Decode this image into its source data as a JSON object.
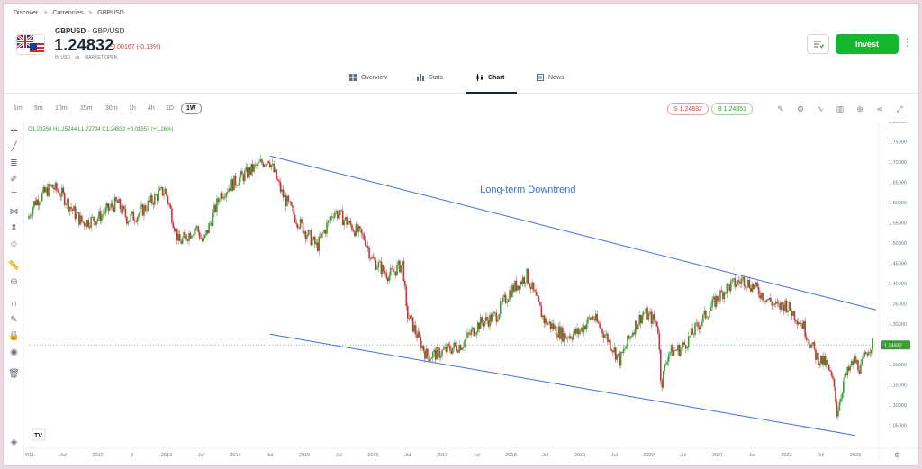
{
  "breadcrumb": {
    "discover": "Discover",
    "currencies": "Currencies",
    "current": "GBPUSD",
    "sep": ">"
  },
  "instrument": {
    "symbol": "GBPUSD",
    "sep": "·",
    "name": "GBP/USD",
    "price": "1.24832",
    "change": "-0.00167 (-0.13%)",
    "currency": "IN USD",
    "market_status": "MARKET OPEN"
  },
  "actions": {
    "invest_label": "Invest",
    "more_icon": "more-vertical-icon",
    "watch_icon": "watchlist-icon"
  },
  "tabs": [
    {
      "label": "Overview",
      "icon": "overview-icon"
    },
    {
      "label": "Stats",
      "icon": "stats-icon"
    },
    {
      "label": "Chart",
      "icon": "chart-icon"
    },
    {
      "label": "News",
      "icon": "news-icon"
    }
  ],
  "timeframes": [
    "1m",
    "5m",
    "10m",
    "15m",
    "30m",
    "1h",
    "4h",
    "1D",
    "1W"
  ],
  "active_timeframe": "1W",
  "sell_pill": "S 1.24832",
  "buy_pill": "B 1.24851",
  "ohlc_text": "O1.23258 H1.25244 L1.22734 C1.24832 +0.01557 (+1.26%)",
  "current_price_label": "1.24832",
  "annotation_text": "Long-term Downtrend",
  "colors": {
    "up": "#3a9e34",
    "down": "#c8343a",
    "trend": "#3f6fe0",
    "invest": "#13b82f"
  },
  "chart_data": {
    "type": "candlestick",
    "title": "",
    "xlabel": "",
    "ylabel": "",
    "ylim": [
      1.0,
      1.8
    ],
    "yticks": [
      1.8,
      1.75,
      1.7,
      1.65,
      1.6,
      1.55,
      1.5,
      1.45,
      1.4,
      1.35,
      1.3,
      1.25,
      1.2,
      1.15,
      1.1,
      1.05
    ],
    "ytick_labels": [
      "1.80000",
      "1.75000",
      "1.70000",
      "1.65000",
      "1.60000",
      "1.55000",
      "1.50000",
      "1.45000",
      "1.40000",
      "1.35000",
      "1.30000",
      "1.25000",
      "1.20000",
      "1.15000",
      "1.10000",
      "1.05000"
    ],
    "xticks": [
      "2011",
      "Jul",
      "2012",
      "9",
      "2013",
      "Jul",
      "2014",
      "Jul",
      "2015",
      "Jul",
      "2016",
      "Jul",
      "2017",
      "Jul",
      "2018",
      "Jul",
      "2019",
      "Jul",
      "2020",
      "Jul",
      "2021",
      "Jul",
      "2022",
      "Jul",
      "2023"
    ],
    "x_years": [
      2011.0,
      2011.5,
      2012.0,
      2012.5,
      2013.0,
      2013.5,
      2014.0,
      2014.5,
      2015.0,
      2015.5,
      2016.0,
      2016.5,
      2017.0,
      2017.5,
      2018.0,
      2018.5,
      2019.0,
      2019.5,
      2020.0,
      2020.5,
      2021.0,
      2021.5,
      2022.0,
      2022.5,
      2023.0
    ],
    "xlim": [
      2011.0,
      2023.3
    ],
    "price_path": [
      [
        2011.0,
        1.56
      ],
      [
        2011.1,
        1.6
      ],
      [
        2011.35,
        1.64
      ],
      [
        2011.5,
        1.62
      ],
      [
        2011.7,
        1.57
      ],
      [
        2011.8,
        1.55
      ],
      [
        2012.0,
        1.56
      ],
      [
        2012.3,
        1.6
      ],
      [
        2012.45,
        1.56
      ],
      [
        2012.6,
        1.57
      ],
      [
        2012.9,
        1.62
      ],
      [
        2013.0,
        1.63
      ],
      [
        2013.2,
        1.5
      ],
      [
        2013.45,
        1.54
      ],
      [
        2013.55,
        1.5
      ],
      [
        2013.8,
        1.62
      ],
      [
        2014.0,
        1.65
      ],
      [
        2014.25,
        1.68
      ],
      [
        2014.5,
        1.71
      ],
      [
        2014.7,
        1.62
      ],
      [
        2014.9,
        1.56
      ],
      [
        2015.2,
        1.49
      ],
      [
        2015.45,
        1.58
      ],
      [
        2015.65,
        1.55
      ],
      [
        2015.9,
        1.51
      ],
      [
        2016.0,
        1.46
      ],
      [
        2016.25,
        1.42
      ],
      [
        2016.45,
        1.45
      ],
      [
        2016.5,
        1.33
      ],
      [
        2016.8,
        1.22
      ],
      [
        2017.0,
        1.23
      ],
      [
        2017.3,
        1.25
      ],
      [
        2017.55,
        1.3
      ],
      [
        2017.8,
        1.32
      ],
      [
        2018.0,
        1.38
      ],
      [
        2018.25,
        1.42
      ],
      [
        2018.5,
        1.31
      ],
      [
        2018.8,
        1.27
      ],
      [
        2019.0,
        1.28
      ],
      [
        2019.2,
        1.32
      ],
      [
        2019.4,
        1.27
      ],
      [
        2019.6,
        1.21
      ],
      [
        2019.8,
        1.29
      ],
      [
        2019.95,
        1.33
      ],
      [
        2020.15,
        1.3
      ],
      [
        2020.2,
        1.15
      ],
      [
        2020.3,
        1.23
      ],
      [
        2020.5,
        1.24
      ],
      [
        2020.75,
        1.3
      ],
      [
        2021.0,
        1.36
      ],
      [
        2021.15,
        1.39
      ],
      [
        2021.4,
        1.41
      ],
      [
        2021.55,
        1.39
      ],
      [
        2021.75,
        1.36
      ],
      [
        2021.9,
        1.34
      ],
      [
        2022.0,
        1.35
      ],
      [
        2022.25,
        1.3
      ],
      [
        2022.45,
        1.22
      ],
      [
        2022.6,
        1.2
      ],
      [
        2022.72,
        1.14
      ],
      [
        2022.75,
        1.08
      ],
      [
        2022.85,
        1.16
      ],
      [
        2023.0,
        1.21
      ],
      [
        2023.1,
        1.19
      ],
      [
        2023.2,
        1.24
      ],
      [
        2023.25,
        1.248
      ]
    ],
    "trendlines": [
      {
        "from": [
          2014.5,
          1.715
        ],
        "to": [
          2023.3,
          1.335
        ]
      },
      {
        "from": [
          2014.5,
          1.275
        ],
        "to": [
          2023.0,
          1.025
        ]
      }
    ],
    "annotation": {
      "text": "Long-term Downtrend",
      "at": [
        2017.55,
        1.625
      ]
    },
    "current_price": 1.24832,
    "grid": false
  }
}
